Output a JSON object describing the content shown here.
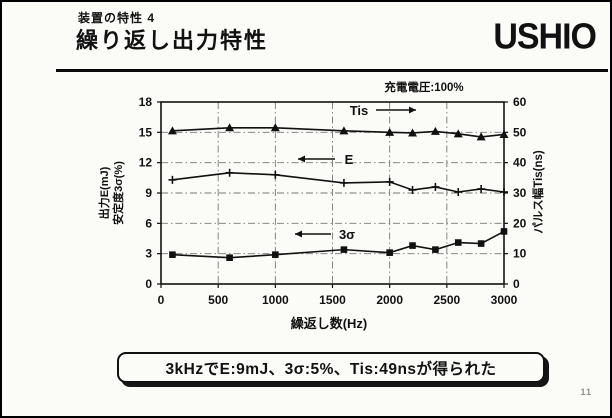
{
  "page": {
    "page_number": "11"
  },
  "header": {
    "subtitle": "装置の特性 4",
    "title": "繰り返し出力特性",
    "logo": "USHIO"
  },
  "colors": {
    "ink": "#111111",
    "grid": "#777777",
    "background": "#fbfbf8",
    "page_number_gray": "#909090"
  },
  "chart_data": {
    "type": "line",
    "condition_note": "充電電圧:100%",
    "xlabel": "繰返し数(Hz)",
    "ylabel_left_line1": "出力E(mJ)",
    "ylabel_left_line2": "安定度3σ(%)",
    "ylabel_right": "パルス幅Tis(ns)",
    "xlim": [
      0,
      3000
    ],
    "xticks": [
      0,
      500,
      1000,
      1500,
      2000,
      2500,
      3000
    ],
    "ylim_left": [
      0,
      18
    ],
    "yticks_left": [
      0,
      3,
      6,
      9,
      12,
      15,
      18
    ],
    "ylim_right": [
      0,
      60
    ],
    "yticks_right": [
      0,
      10,
      20,
      30,
      40,
      50,
      60
    ],
    "grid_x": [
      500,
      1000,
      1500,
      2000,
      2500
    ],
    "grid_y_left": [
      3,
      6,
      9,
      12,
      15
    ],
    "x": [
      100,
      600,
      1000,
      1600,
      2000,
      2200,
      2400,
      2600,
      2800,
      3000
    ],
    "series": [
      {
        "name": "Tis",
        "axis": "right",
        "marker": "triangle",
        "values": [
          50.5,
          51.5,
          51.5,
          50.5,
          50.0,
          49.8,
          50.3,
          49.5,
          48.5,
          49.3
        ]
      },
      {
        "name": "E",
        "axis": "left",
        "marker": "plus",
        "values": [
          10.3,
          11.0,
          10.8,
          10.0,
          10.1,
          9.3,
          9.6,
          9.1,
          9.4,
          9.1
        ]
      },
      {
        "name": "3σ",
        "axis": "left",
        "marker": "square",
        "values": [
          2.9,
          2.6,
          2.9,
          3.4,
          3.1,
          3.8,
          3.4,
          4.1,
          4.0,
          5.2
        ]
      }
    ],
    "annotations": [
      {
        "label": "Tis",
        "arrow": "right"
      },
      {
        "label": "E",
        "arrow": "left"
      },
      {
        "label": "3σ",
        "arrow": "left"
      }
    ]
  },
  "callout": {
    "text": "3kHzでE:9mJ、3σ:5%、Tis:49nsが得られた"
  }
}
